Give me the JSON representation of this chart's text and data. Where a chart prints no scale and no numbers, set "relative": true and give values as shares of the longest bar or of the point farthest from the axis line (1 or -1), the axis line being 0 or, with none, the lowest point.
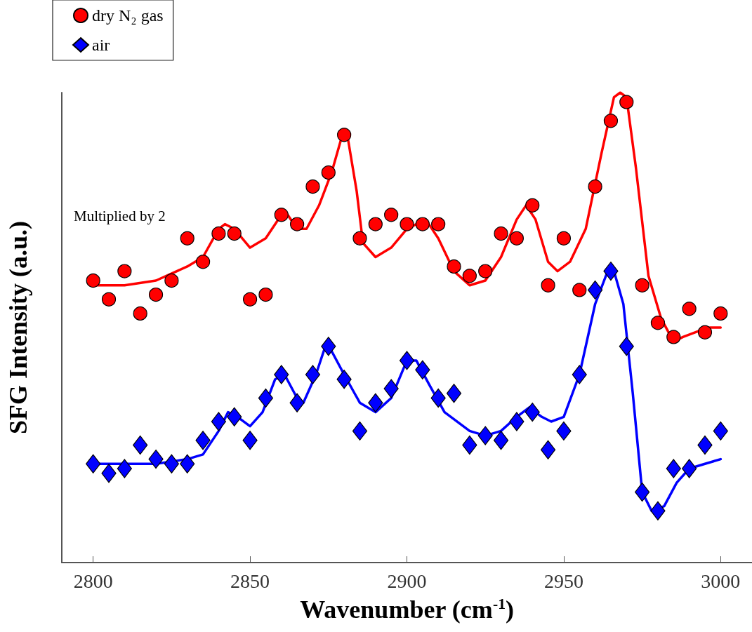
{
  "chart_data": {
    "type": "scatter",
    "relative": true,
    "xlabel": "Wavenumber (cm$^{-1}$)",
    "ylabel": "SFG Intensity (a.u.)",
    "annotations": [
      "Multiplied by 2"
    ],
    "legend": "top left",
    "grid": false,
    "xlim": [
      2790,
      3010
    ],
    "xticks": [
      2800,
      2850,
      2900,
      2950,
      3000
    ],
    "series": [
      {
        "name": "dry N₂ gas",
        "marker": "circle",
        "color": "#ff0000",
        "x": [
          2800,
          2805,
          2810,
          2815,
          2820,
          2825,
          2830,
          2835,
          2840,
          2845,
          2850,
          2855,
          2860,
          2865,
          2870,
          2875,
          2880,
          2885,
          2890,
          2895,
          2900,
          2905,
          2910,
          2915,
          2920,
          2925,
          2930,
          2935,
          2940,
          2945,
          2950,
          2955,
          2960,
          2965,
          2970,
          2975,
          2980,
          2985,
          2990,
          2995,
          3000
        ],
        "values": [
          0.6,
          0.56,
          0.62,
          0.53,
          0.57,
          0.6,
          0.69,
          0.64,
          0.7,
          0.7,
          0.56,
          0.57,
          0.74,
          0.72,
          0.8,
          0.83,
          0.91,
          0.69,
          0.72,
          0.74,
          0.72,
          0.72,
          0.72,
          0.63,
          0.61,
          0.62,
          0.7,
          0.69,
          0.76,
          0.59,
          0.69,
          0.58,
          0.8,
          0.94,
          0.98,
          0.59,
          0.51,
          0.48,
          0.54,
          0.49,
          0.53
        ]
      },
      {
        "name": "air",
        "marker": "diamond",
        "color": "#0000ff",
        "x": [
          2800,
          2805,
          2810,
          2815,
          2820,
          2825,
          2830,
          2835,
          2840,
          2845,
          2850,
          2855,
          2860,
          2865,
          2870,
          2875,
          2880,
          2885,
          2890,
          2895,
          2900,
          2905,
          2910,
          2915,
          2920,
          2925,
          2930,
          2935,
          2940,
          2945,
          2950,
          2955,
          2960,
          2965,
          2970,
          2975,
          2980,
          2985,
          2990,
          2995,
          3000
        ],
        "values": [
          0.21,
          0.19,
          0.2,
          0.25,
          0.22,
          0.21,
          0.21,
          0.26,
          0.3,
          0.31,
          0.26,
          0.35,
          0.4,
          0.34,
          0.4,
          0.46,
          0.39,
          0.28,
          0.34,
          0.37,
          0.43,
          0.41,
          0.35,
          0.36,
          0.25,
          0.27,
          0.26,
          0.3,
          0.32,
          0.24,
          0.28,
          0.4,
          0.58,
          0.62,
          0.46,
          0.15,
          0.11,
          0.2,
          0.2,
          0.25,
          0.28
        ]
      },
      {
        "type": "line",
        "marker": "none",
        "line_style": "solid",
        "color": "#ff0000",
        "x": [
          2800,
          2810,
          2820,
          2830,
          2835,
          2840,
          2842,
          2845,
          2850,
          2855,
          2860,
          2862,
          2865,
          2868,
          2872,
          2876,
          2879,
          2881,
          2884,
          2886,
          2890,
          2895,
          2900,
          2903,
          2907,
          2910,
          2915,
          2920,
          2925,
          2930,
          2935,
          2938,
          2941,
          2945,
          2948,
          2952,
          2957,
          2962,
          2966,
          2968,
          2970,
          2973,
          2977,
          2981,
          2985,
          2988,
          2992,
          2996,
          3000
        ],
        "values": [
          0.59,
          0.59,
          0.6,
          0.63,
          0.65,
          0.71,
          0.72,
          0.71,
          0.67,
          0.69,
          0.74,
          0.74,
          0.71,
          0.71,
          0.76,
          0.83,
          0.9,
          0.91,
          0.79,
          0.68,
          0.65,
          0.67,
          0.71,
          0.72,
          0.72,
          0.69,
          0.62,
          0.59,
          0.6,
          0.65,
          0.73,
          0.76,
          0.73,
          0.64,
          0.62,
          0.64,
          0.71,
          0.87,
          0.99,
          1,
          0.99,
          0.84,
          0.61,
          0.52,
          0.47,
          0.48,
          0.49,
          0.5,
          0.5
        ]
      },
      {
        "type": "line",
        "marker": "none",
        "line_style": "solid",
        "color": "#0000ff",
        "x": [
          2800,
          2810,
          2820,
          2830,
          2835,
          2840,
          2843,
          2846,
          2850,
          2854,
          2858,
          2861,
          2865,
          2867,
          2871,
          2874,
          2876,
          2880,
          2885,
          2890,
          2895,
          2900,
          2903,
          2907,
          2912,
          2920,
          2925,
          2930,
          2935,
          2939,
          2943,
          2946,
          2950,
          2955,
          2960,
          2964,
          2966,
          2969,
          2972,
          2975,
          2978,
          2982,
          2986,
          2990,
          2995,
          3000
        ],
        "values": [
          0.21,
          0.21,
          0.21,
          0.22,
          0.23,
          0.28,
          0.32,
          0.31,
          0.29,
          0.32,
          0.39,
          0.4,
          0.35,
          0.34,
          0.4,
          0.46,
          0.45,
          0.4,
          0.34,
          0.32,
          0.35,
          0.43,
          0.43,
          0.38,
          0.32,
          0.28,
          0.27,
          0.28,
          0.31,
          0.33,
          0.31,
          0.3,
          0.31,
          0.4,
          0.55,
          0.62,
          0.62,
          0.55,
          0.36,
          0.15,
          0.11,
          0.12,
          0.17,
          0.2,
          0.21,
          0.22
        ]
      }
    ]
  }
}
